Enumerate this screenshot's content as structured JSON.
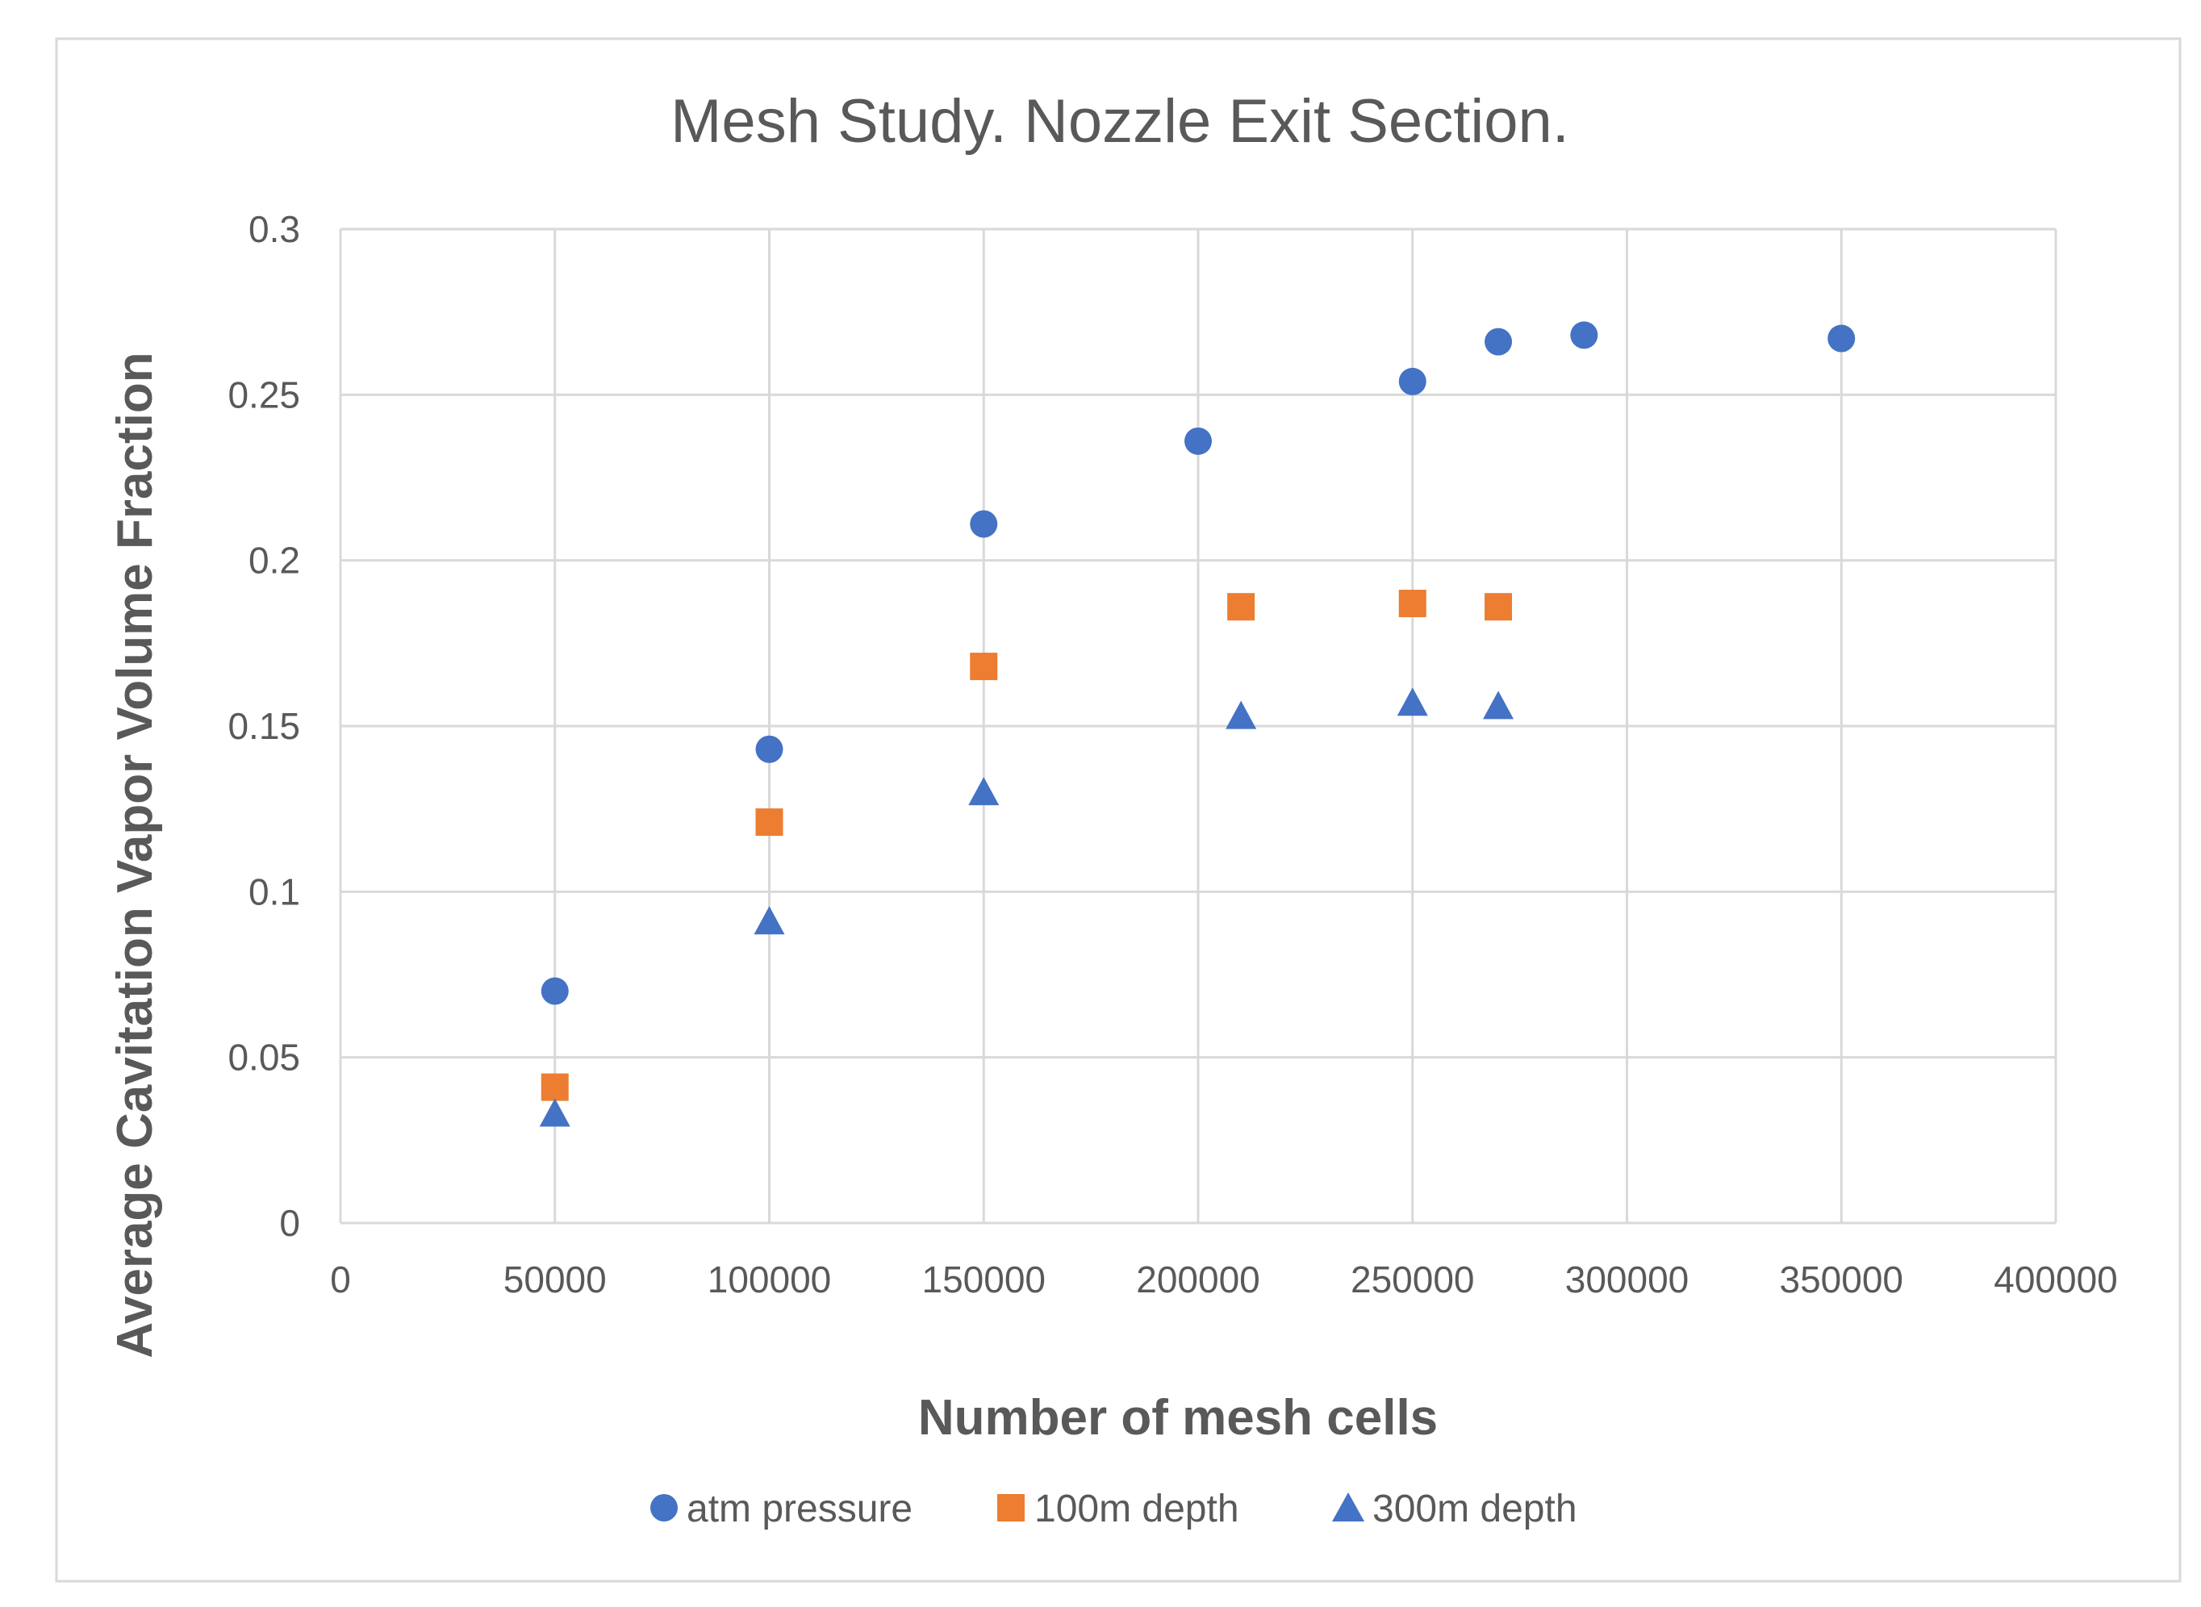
{
  "chart_data": {
    "type": "scatter",
    "title": "Mesh Study. Nozzle Exit Section.",
    "xlabel": "Number of mesh cells",
    "ylabel": "Average Cavitation Vapor Volume Fraction",
    "xlim": [
      0,
      400000
    ],
    "ylim": [
      0,
      0.3
    ],
    "x_ticks": [
      0,
      50000,
      100000,
      150000,
      200000,
      250000,
      300000,
      350000,
      400000
    ],
    "x_tick_labels": [
      "0",
      "50000",
      "100000",
      "150000",
      "200000",
      "250000",
      "300000",
      "350000",
      "400000"
    ],
    "y_ticks": [
      0,
      0.05,
      0.1,
      0.15,
      0.2,
      0.25,
      0.3
    ],
    "y_tick_labels": [
      "0",
      "0.05",
      "0.1",
      "0.15",
      "0.2",
      "0.25",
      "0.3"
    ],
    "grid": true,
    "legend_position": "bottom",
    "series": [
      {
        "name": "atm pressure",
        "marker": "circle",
        "color": "#4472C4",
        "x": [
          50000,
          100000,
          150000,
          200000,
          250000,
          270000,
          290000,
          350000
        ],
        "y": [
          0.07,
          0.143,
          0.211,
          0.236,
          0.254,
          0.266,
          0.268,
          0.267
        ]
      },
      {
        "name": "100m depth",
        "marker": "square",
        "color": "#ED7D31",
        "x": [
          50000,
          100000,
          150000,
          210000,
          250000,
          270000
        ],
        "y": [
          0.041,
          0.121,
          0.168,
          0.186,
          0.187,
          0.186
        ]
      },
      {
        "name": "300m depth",
        "marker": "triangle",
        "color": "#4472C4",
        "x": [
          50000,
          100000,
          150000,
          210000,
          250000,
          270000
        ],
        "y": [
          0.033,
          0.091,
          0.13,
          0.153,
          0.157,
          0.156
        ]
      }
    ]
  },
  "colors": {
    "grid": "#D9D9D9",
    "frame": "#D9D9D9",
    "title": "#595959",
    "tick_label": "#595959",
    "axis_label": "#595959"
  }
}
